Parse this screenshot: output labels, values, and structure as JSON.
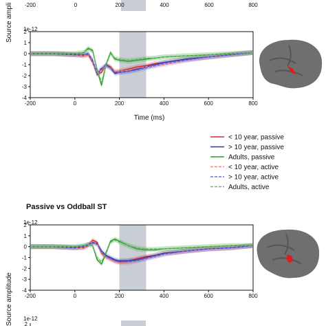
{
  "chart_data": [
    {
      "type": "line",
      "panel": "top",
      "title": "",
      "xlabel": "Time (ms)",
      "ylabel": "Source amplitude",
      "yscale_label": "1e-12",
      "xlim": [
        -200,
        800
      ],
      "ylim": [
        -4,
        2
      ],
      "xticks": [
        "-200",
        "0",
        "200",
        "400",
        "600",
        "800"
      ],
      "yticks": [
        "2",
        "1",
        "0",
        "-1",
        "-2",
        "-3",
        "-4"
      ],
      "shaded_window": [
        200,
        320
      ],
      "series": [
        {
          "name": "< 10 year, passive",
          "color": "#d62728",
          "style": "solid",
          "x": [
            -200,
            -100,
            0,
            40,
            60,
            80,
            100,
            120,
            140,
            160,
            180,
            200,
            240,
            280,
            320,
            360,
            400,
            500,
            600,
            700,
            800
          ],
          "y": [
            0,
            0,
            -0.1,
            -0.2,
            -0.1,
            -0.8,
            -1.9,
            -1.7,
            -1.0,
            -1.2,
            -1.7,
            -1.6,
            -1.4,
            -1.2,
            -1.1,
            -0.9,
            -0.8,
            -0.5,
            -0.3,
            -0.1,
            0.1
          ]
        },
        {
          "name": "> 10 year, passive",
          "color": "#1f3fb4",
          "style": "solid",
          "x": [
            -200,
            -100,
            0,
            40,
            60,
            80,
            100,
            120,
            140,
            160,
            180,
            200,
            240,
            280,
            320,
            360,
            400,
            500,
            600,
            700,
            800
          ],
          "y": [
            0,
            0,
            -0.1,
            -0.1,
            0,
            -0.6,
            -1.9,
            -1.4,
            -1.0,
            -1.3,
            -1.8,
            -1.7,
            -1.6,
            -1.4,
            -1.2,
            -1.0,
            -0.8,
            -0.5,
            -0.3,
            -0.1,
            0.1
          ]
        },
        {
          "name": "Adults, passive",
          "color": "#2a9d2a",
          "style": "solid",
          "x": [
            -200,
            -100,
            0,
            40,
            60,
            80,
            100,
            120,
            140,
            160,
            180,
            200,
            240,
            280,
            320,
            360,
            400,
            500,
            600,
            700,
            800
          ],
          "y": [
            0,
            0,
            0,
            0.1,
            0.5,
            0.3,
            -1.5,
            -2.9,
            -1.0,
            0.1,
            -0.5,
            -0.6,
            -0.7,
            -0.6,
            -0.5,
            -0.4,
            -0.3,
            -0.2,
            -0.1,
            0,
            0.1
          ]
        },
        {
          "name": "< 10 year, active",
          "color": "#f08080",
          "style": "dashed",
          "x": [
            -200,
            -100,
            0,
            40,
            60,
            80,
            100,
            120,
            140,
            160,
            180,
            200,
            240,
            280,
            320,
            360,
            400,
            500,
            600,
            700,
            800
          ],
          "y": [
            0,
            0,
            -0.1,
            -0.2,
            -0.1,
            -0.7,
            -1.8,
            -1.5,
            -1.1,
            -1.3,
            -1.6,
            -1.6,
            -1.5,
            -1.3,
            -1.2,
            -1.1,
            -1.0,
            -0.6,
            -0.3,
            -0.1,
            0.1
          ]
        },
        {
          "name": "> 10 year, active",
          "color": "#6a6ae6",
          "style": "dashed",
          "x": [
            -200,
            -100,
            0,
            40,
            60,
            80,
            100,
            120,
            140,
            160,
            180,
            200,
            240,
            280,
            320,
            360,
            400,
            500,
            600,
            700,
            800
          ],
          "y": [
            0,
            0,
            -0.1,
            -0.1,
            0,
            -0.6,
            -1.7,
            -1.3,
            -1.1,
            -1.3,
            -1.7,
            -1.7,
            -1.6,
            -1.5,
            -1.3,
            -1.1,
            -0.9,
            -0.6,
            -0.3,
            -0.1,
            0.1
          ]
        },
        {
          "name": "Adults, active",
          "color": "#6ab86a",
          "style": "dashed",
          "x": [
            -200,
            -100,
            0,
            40,
            60,
            80,
            100,
            120,
            140,
            160,
            180,
            200,
            240,
            280,
            320,
            360,
            400,
            500,
            600,
            700,
            800
          ],
          "y": [
            0,
            0,
            0,
            0.1,
            0.4,
            0.2,
            -1.4,
            -2.6,
            -1.0,
            0,
            -0.4,
            -0.5,
            -0.6,
            -0.5,
            -0.4,
            -0.4,
            -0.3,
            -0.2,
            -0.1,
            0,
            0.1
          ]
        }
      ]
    },
    {
      "type": "line",
      "panel": "bottom",
      "title": "Passive vs Oddball ST",
      "xlabel": "",
      "ylabel": "Source amplitude",
      "yscale_label": "1e-12",
      "xlim": [
        -200,
        800
      ],
      "ylim": [
        -4,
        2
      ],
      "xticks": [
        "-200",
        "0",
        "200",
        "400",
        "600",
        "800"
      ],
      "yticks": [
        "2",
        "1",
        "0",
        "-1",
        "-2",
        "-3",
        "-4"
      ],
      "shaded_window": [
        200,
        320
      ],
      "series": [
        {
          "name": "< 10 year, passive",
          "color": "#d62728",
          "style": "solid",
          "x": [
            -200,
            -100,
            0,
            40,
            60,
            80,
            100,
            120,
            140,
            160,
            180,
            200,
            240,
            280,
            320,
            360,
            400,
            500,
            600,
            700,
            800
          ],
          "y": [
            0,
            0,
            -0.1,
            -0.1,
            0.1,
            0.6,
            0.4,
            -0.6,
            -0.9,
            -1.1,
            -1.3,
            -1.4,
            -1.3,
            -1.1,
            -0.9,
            -0.8,
            -0.6,
            -0.4,
            -0.2,
            -0.1,
            0.1
          ]
        },
        {
          "name": "> 10 year, passive",
          "color": "#1f3fb4",
          "style": "solid",
          "x": [
            -200,
            -100,
            0,
            40,
            60,
            80,
            100,
            120,
            140,
            160,
            180,
            200,
            240,
            280,
            320,
            360,
            400,
            500,
            600,
            700,
            800
          ],
          "y": [
            0,
            0,
            -0.1,
            0,
            0.2,
            0.4,
            0.3,
            -0.4,
            -0.8,
            -1.0,
            -1.2,
            -1.3,
            -1.3,
            -1.2,
            -1.0,
            -0.8,
            -0.6,
            -0.4,
            -0.2,
            -0.1,
            0.1
          ]
        },
        {
          "name": "Adults, passive",
          "color": "#2a9d2a",
          "style": "solid",
          "x": [
            -200,
            -100,
            0,
            40,
            60,
            80,
            100,
            120,
            140,
            160,
            180,
            200,
            240,
            280,
            320,
            360,
            400,
            500,
            600,
            700,
            800
          ],
          "y": [
            0,
            0,
            0,
            0.1,
            0.2,
            0.1,
            -1.2,
            -1.6,
            -0.6,
            0.5,
            0.7,
            0.5,
            0.1,
            -0.2,
            -0.3,
            -0.3,
            -0.2,
            -0.1,
            0,
            0.1,
            0.1
          ]
        },
        {
          "name": "< 10 year, active",
          "color": "#f08080",
          "style": "dashed",
          "x": [
            -200,
            -100,
            0,
            40,
            60,
            80,
            100,
            120,
            140,
            160,
            180,
            200,
            240,
            280,
            320,
            360,
            400,
            500,
            600,
            700,
            800
          ],
          "y": [
            0,
            0,
            -0.1,
            -0.1,
            0.1,
            0.5,
            0.3,
            -0.7,
            -1.0,
            -1.2,
            -1.4,
            -1.5,
            -1.5,
            -1.3,
            -1.1,
            -0.9,
            -0.7,
            -0.4,
            -0.2,
            -0.1,
            0.1
          ]
        },
        {
          "name": "> 10 year, active",
          "color": "#6a6ae6",
          "style": "dashed",
          "x": [
            -200,
            -100,
            0,
            40,
            60,
            80,
            100,
            120,
            140,
            160,
            180,
            200,
            240,
            280,
            320,
            360,
            400,
            500,
            600,
            700,
            800
          ],
          "y": [
            0,
            0,
            -0.1,
            0,
            0.2,
            0.3,
            0.2,
            -0.5,
            -0.9,
            -1.1,
            -1.3,
            -1.4,
            -1.4,
            -1.3,
            -1.1,
            -0.9,
            -0.7,
            -0.4,
            -0.2,
            -0.1,
            0.1
          ]
        },
        {
          "name": "Adults, active",
          "color": "#6ab86a",
          "style": "dashed",
          "x": [
            -200,
            -100,
            0,
            40,
            60,
            80,
            100,
            120,
            140,
            160,
            180,
            200,
            240,
            280,
            320,
            360,
            400,
            500,
            600,
            700,
            800
          ],
          "y": [
            0,
            0,
            0,
            0.1,
            0.2,
            0.1,
            -1.0,
            -1.4,
            -0.5,
            0.4,
            0.6,
            0.4,
            0.1,
            -0.1,
            -0.2,
            -0.2,
            -0.2,
            -0.1,
            0,
            0.1,
            0.1
          ]
        }
      ]
    }
  ],
  "legend": {
    "placement": "right",
    "entries": [
      {
        "label": "< 10 year, passive",
        "color": "#d62728",
        "style": "solid"
      },
      {
        "label": "> 10 year, passive",
        "color": "#1f3fb4",
        "style": "solid"
      },
      {
        "label": "Adults, passive",
        "color": "#2a9d2a",
        "style": "solid"
      },
      {
        "label": "< 10 year, active",
        "color": "#f08080",
        "style": "dashed"
      },
      {
        "label": "> 10 year, active",
        "color": "#6a6ae6",
        "style": "dashed"
      },
      {
        "label": "Adults, active",
        "color": "#6ab86a",
        "style": "dashed"
      }
    ]
  },
  "top_strip": {
    "ylabel": "Source ampli",
    "xticks": [
      "-200",
      "0",
      "200",
      "400",
      "600",
      "800"
    ]
  },
  "bottom_strip": {
    "yscale_label": "1e-12",
    "ytick": "2"
  },
  "colors": {
    "window_shade": "#c9cdd4",
    "brain": "#6f6f6f",
    "brain_highlight": "#e01b1b"
  }
}
